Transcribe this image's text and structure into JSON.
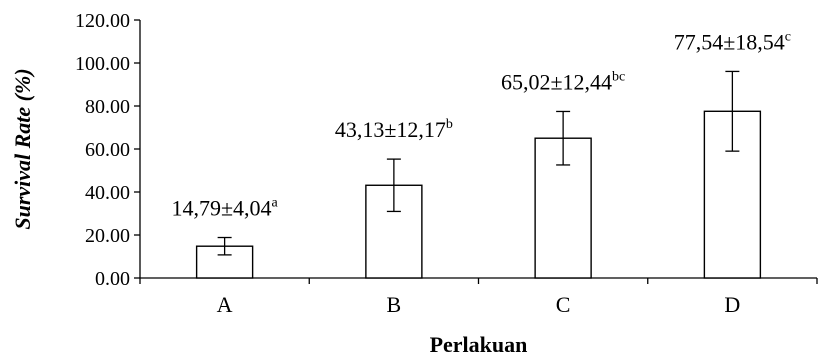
{
  "chart_data": {
    "type": "bar",
    "title": "",
    "xlabel": "Perlakuan",
    "ylabel": "Survival Rate (%)",
    "ylim": [
      0,
      120
    ],
    "yticks": [
      "0.00",
      "20.00",
      "40.00",
      "60.00",
      "80.00",
      "100.00",
      "120.00"
    ],
    "categories": [
      "A",
      "B",
      "C",
      "D"
    ],
    "values": [
      14.79,
      43.13,
      65.02,
      77.54
    ],
    "errors": [
      4.04,
      12.17,
      12.44,
      18.54
    ],
    "data_labels": [
      {
        "text": "14,79±4,04",
        "sup": "a"
      },
      {
        "text": "43,13±12,17",
        "sup": "b"
      },
      {
        "text": "65,02±12,44",
        "sup": "bc"
      },
      {
        "text": "77,54±18,54",
        "sup": "c"
      }
    ],
    "grid": false,
    "bar_color": "#ffffff",
    "edge_color": "#000000"
  }
}
